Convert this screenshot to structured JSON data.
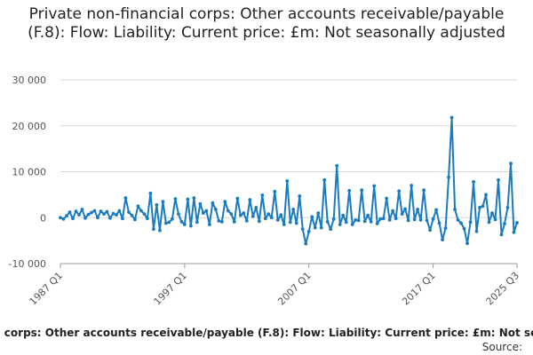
{
  "chart_data": {
    "type": "line",
    "title": "Private non-financial corps: Other accounts receivable/payable (F.8): Flow: Liability: Current price: £m: Not seasonally adjusted",
    "xlabel": "",
    "ylabel": "",
    "ylim": [
      -10000,
      30000
    ],
    "yticks": [
      30000,
      20000,
      10000,
      0,
      -10000
    ],
    "ytick_labels": [
      "30 000",
      "20 000",
      "10 000",
      "0",
      "-10 000"
    ],
    "xtick_labels": [
      "1987 Q1",
      "1997 Q1",
      "2007 Q1",
      "2017 Q1",
      "2025 Q3"
    ],
    "xticks": [
      "1987 Q1",
      "1997 Q1",
      "2007 Q1",
      "2017 Q1",
      "2025 Q3"
    ],
    "grid": true,
    "legend_position": "bottom",
    "color": "#1a7bbf",
    "series": [
      {
        "name": "Private non-financial corps: Other accounts receivable/payable (F.8): Flow: Liability: Current price: £m: Not seasonally adjusted",
        "x_start": "1987 Q1",
        "values": [
          0,
          -300,
          400,
          1200,
          -200,
          1400,
          600,
          1800,
          -100,
          700,
          1100,
          1500,
          0,
          1400,
          800,
          1300,
          -100,
          900,
          600,
          1500,
          -200,
          4300,
          1200,
          500,
          -400,
          2500,
          1500,
          800,
          -200,
          5300,
          -2500,
          2800,
          -2800,
          3500,
          -1200,
          -1000,
          -300,
          4100,
          800,
          -900,
          -1500,
          4000,
          -1800,
          4300,
          -1000,
          3000,
          1000,
          1500,
          -1500,
          3200,
          1800,
          -700,
          -900,
          3500,
          1500,
          800,
          -900,
          4200,
          500,
          1000,
          -700,
          3900,
          300,
          2200,
          -800,
          4900,
          -200,
          800,
          0,
          5700,
          -500,
          600,
          -1500,
          8000,
          -1000,
          1800,
          -1200,
          4700,
          -2500,
          -5700,
          -3000,
          200,
          -2200,
          1000,
          -2200,
          8200,
          -900,
          -2500,
          -300,
          11300,
          -1500,
          500,
          -1000,
          5900,
          -1500,
          -500,
          -600,
          6000,
          -800,
          500,
          -900,
          6900,
          -1300,
          -300,
          -200,
          4200,
          -500,
          1500,
          -200,
          5800,
          800,
          1900,
          -600,
          7000,
          -400,
          1800,
          -500,
          6000,
          -600,
          -2700,
          -300,
          1700,
          -1200,
          -4800,
          -2300,
          8800,
          21800,
          1800,
          -500,
          -1200,
          -2400,
          -5600,
          -1000,
          7800,
          -3000,
          2200,
          2500,
          5000,
          -1000,
          1000,
          -400,
          8200,
          -3700,
          -1300,
          2200,
          11800,
          -3200,
          -1100
        ]
      }
    ]
  },
  "source_label": "Source:"
}
